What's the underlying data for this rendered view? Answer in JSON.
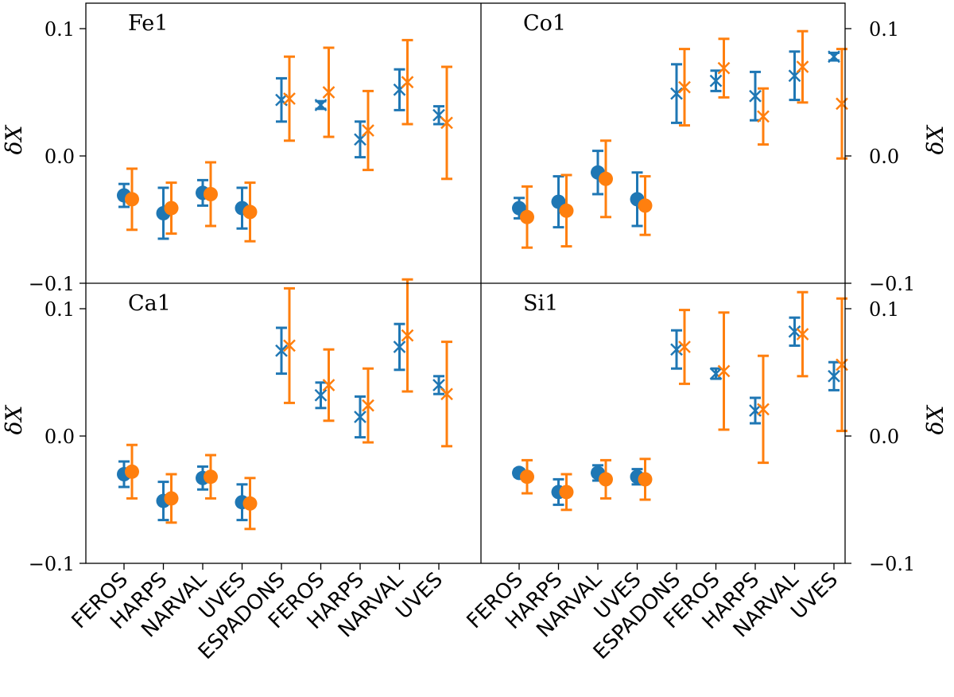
{
  "colors": {
    "blue": "#1f77b4",
    "orange": "#ff7f0e",
    "axis": "#000000"
  },
  "chart_data": {
    "type": "scatter",
    "ylabel": "δX",
    "ylim": [
      -0.1,
      0.12
    ],
    "yticks": [
      0.1,
      0.0,
      -0.1
    ],
    "ytick_labels": [
      "0.1",
      "0.0",
      "−0.1"
    ],
    "categories": [
      "FEROS",
      "HARPS",
      "NARVAL",
      "UVES",
      "ESPADONS",
      "FEROS",
      "HARPS",
      "NARVAL",
      "UVES"
    ],
    "marker_note": "points 1-4 circle markers, points 5-9 cross markers",
    "panels": [
      {
        "label": "Fe1",
        "series": [
          {
            "name": "blue",
            "values": [
              -0.031,
              -0.045,
              -0.029,
              -0.041,
              0.044,
              0.04,
              0.013,
              0.052,
              0.032
            ],
            "err": [
              0.009,
              0.02,
              0.01,
              0.016,
              0.017,
              0.003,
              0.014,
              0.016,
              0.007
            ]
          },
          {
            "name": "orange",
            "values": [
              -0.034,
              -0.041,
              -0.03,
              -0.044,
              0.045,
              0.05,
              0.02,
              0.058,
              0.026
            ],
            "err": [
              0.024,
              0.02,
              0.025,
              0.023,
              0.033,
              0.035,
              0.031,
              0.033,
              0.044
            ]
          }
        ]
      },
      {
        "label": "Co1",
        "series": [
          {
            "name": "blue",
            "values": [
              -0.041,
              -0.036,
              -0.013,
              -0.034,
              0.049,
              0.059,
              0.047,
              0.063,
              0.078
            ],
            "err": [
              0.008,
              0.02,
              0.017,
              0.021,
              0.023,
              0.008,
              0.019,
              0.019,
              0.003
            ]
          },
          {
            "name": "orange",
            "values": [
              -0.048,
              -0.043,
              -0.018,
              -0.039,
              0.054,
              0.069,
              0.031,
              0.07,
              0.041
            ],
            "err": [
              0.024,
              0.028,
              0.03,
              0.023,
              0.03,
              0.023,
              0.022,
              0.028,
              0.043
            ]
          }
        ]
      },
      {
        "label": "Ca1",
        "series": [
          {
            "name": "blue",
            "values": [
              -0.03,
              -0.051,
              -0.033,
              -0.052,
              0.067,
              0.032,
              0.015,
              0.07,
              0.04
            ],
            "err": [
              0.01,
              0.015,
              0.009,
              0.014,
              0.018,
              0.01,
              0.016,
              0.018,
              0.007
            ]
          },
          {
            "name": "orange",
            "values": [
              -0.028,
              -0.049,
              -0.032,
              -0.053,
              0.071,
              0.04,
              0.024,
              0.079,
              0.033
            ],
            "err": [
              0.021,
              0.019,
              0.017,
              0.02,
              0.045,
              0.028,
              0.029,
              0.044,
              0.041
            ]
          }
        ]
      },
      {
        "label": "Si1",
        "series": [
          {
            "name": "blue",
            "values": [
              -0.029,
              -0.044,
              -0.029,
              -0.032,
              0.068,
              0.049,
              0.02,
              0.082,
              0.047
            ],
            "err": [
              0.003,
              0.01,
              0.006,
              0.006,
              0.015,
              0.004,
              0.01,
              0.011,
              0.011
            ]
          },
          {
            "name": "orange",
            "values": [
              -0.032,
              -0.044,
              -0.034,
              -0.034,
              0.07,
              0.051,
              0.021,
              0.08,
              0.056
            ],
            "err": [
              0.013,
              0.014,
              0.015,
              0.016,
              0.029,
              0.046,
              0.042,
              0.033,
              0.052
            ]
          }
        ]
      }
    ]
  }
}
